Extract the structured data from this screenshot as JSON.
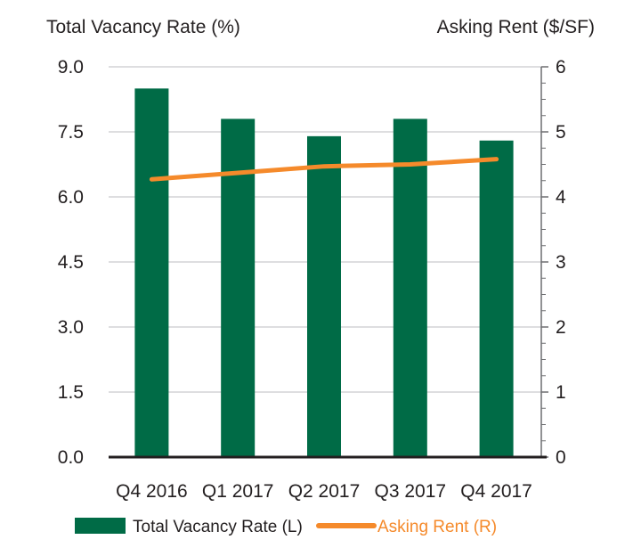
{
  "chart_data": {
    "type": "bar",
    "categories": [
      "Q4 2016",
      "Q1 2017",
      "Q2 2017",
      "Q3 2017",
      "Q4 2017"
    ],
    "left_axis": {
      "title": "Total Vacancy Rate (%)",
      "range": [
        0,
        9
      ],
      "ticks": [
        "0.0",
        "1.5",
        "3.0",
        "4.5",
        "6.0",
        "7.5",
        "9.0"
      ],
      "tick_values": [
        0,
        1.5,
        3,
        4.5,
        6,
        7.5,
        9
      ]
    },
    "right_axis": {
      "title": "Asking Rent ($/SF)",
      "range": [
        0,
        6
      ],
      "ticks": [
        "0",
        "1",
        "2",
        "3",
        "4",
        "5",
        "6"
      ],
      "tick_values": [
        0,
        1,
        2,
        3,
        4,
        5,
        6
      ]
    },
    "series": [
      {
        "name": "Total Vacancy Rate (L)",
        "type": "bar",
        "axis": "left",
        "color": "#006b46",
        "values": [
          8.5,
          7.8,
          7.4,
          7.8,
          7.3
        ]
      },
      {
        "name": "Asking Rent (R)",
        "type": "line",
        "axis": "right",
        "color": "#f58a2b",
        "values": [
          4.27,
          4.37,
          4.47,
          4.5,
          4.58
        ]
      }
    ],
    "grid": "horizontal",
    "legend": "bottom"
  }
}
